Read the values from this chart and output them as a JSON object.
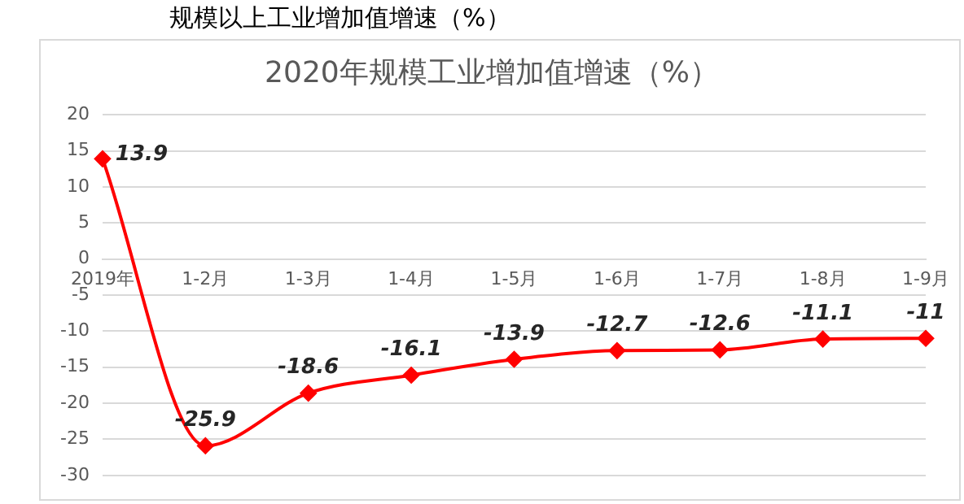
{
  "chart_data": {
    "type": "line",
    "title": "规模以上工业增加值增速（%）",
    "subtitle": "2020年规模工业增加值增速（%）",
    "categories": [
      "2019年",
      "1-2月",
      "1-3月",
      "1-4月",
      "1-5月",
      "1-6月",
      "1-7月",
      "1-8月",
      "1-9月"
    ],
    "series": [
      {
        "color": "#ff0000",
        "values": [
          13.9,
          -25.9,
          -18.6,
          -16.1,
          -13.9,
          -12.7,
          -12.6,
          -11.1,
          -11
        ]
      }
    ],
    "ylim": [
      -30,
      20
    ],
    "yticks": [
      -30,
      -25,
      -20,
      -15,
      -10,
      -5,
      0,
      5,
      10,
      15,
      20
    ],
    "grid": "y",
    "legend": false,
    "marker": "diamond",
    "line_style": "solid",
    "data_labels": true
  }
}
